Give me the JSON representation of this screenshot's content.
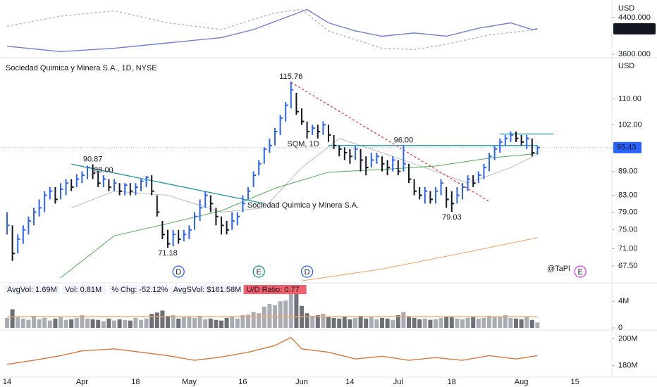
{
  "chart_data": [
    {
      "type": "line",
      "y_label": "USD",
      "ylim": [
        3556,
        4720
      ],
      "yticks": [
        {
          "value": 4400,
          "label": "4400.000"
        },
        {
          "value": 3600,
          "label": "3600.000"
        }
      ],
      "show_last": true,
      "series": [
        {
          "color": "#6f7fd8",
          "x": [
            0,
            10,
            20,
            30,
            40,
            46,
            52,
            56,
            60,
            65,
            70,
            76,
            82,
            88,
            94,
            98,
            99
          ],
          "values": [
            3775,
            3658,
            3731,
            3847,
            3964,
            4138,
            4400,
            4575,
            4284,
            4109,
            3993,
            4065,
            3993,
            4167,
            4284,
            4138,
            4153.219
          ]
        },
        {
          "color": "#b2b5be",
          "dashed": true,
          "x": [
            0,
            10,
            20,
            30,
            40,
            50,
            55,
            60,
            70,
            76,
            82,
            90,
            99
          ],
          "values": [
            4211,
            4429,
            4545,
            4284,
            4138,
            4502,
            4575,
            4109,
            3731,
            3702,
            3818,
            4022,
            4138
          ]
        }
      ]
    },
    {
      "type": "ohlc",
      "title": "Sociedad Quimica y Minera S.A., 1D, NYSE",
      "y_label": "USD",
      "watermark": [
        "SQM, 1D",
        "Sociedad Quimica y Minera S.A."
      ],
      "logo": "@TaPl",
      "log_scale": true,
      "grid": false,
      "up_color": "#2962ff",
      "down_color": "#131722",
      "ylim": [
        64.5,
        123.1
      ],
      "yticks": [
        {
          "value": 67.5,
          "label": "67.50"
        },
        {
          "value": 71,
          "label": "71.00"
        },
        {
          "value": 75,
          "label": "75.00"
        },
        {
          "value": 79,
          "label": "79.00"
        },
        {
          "value": 83,
          "label": "83.00"
        },
        {
          "value": 89,
          "label": "89.00"
        },
        {
          "value": 102,
          "label": "102.00"
        },
        {
          "value": 110,
          "label": "110.00"
        }
      ],
      "categories": [
        "14",
        null,
        null,
        null,
        null,
        null,
        null,
        null,
        null,
        null,
        null,
        null,
        null,
        null,
        "Apr",
        null,
        null,
        null,
        null,
        null,
        null,
        null,
        null,
        null,
        "18",
        null,
        null,
        null,
        null,
        null,
        null,
        null,
        null,
        null,
        "May",
        null,
        null,
        null,
        null,
        null,
        null,
        null,
        null,
        null,
        "16",
        null,
        null,
        null,
        null,
        null,
        null,
        null,
        null,
        null,
        null,
        "Jun",
        null,
        null,
        null,
        null,
        null,
        null,
        null,
        null,
        "14",
        null,
        null,
        null,
        null,
        null,
        null,
        null,
        null,
        "Jul",
        null,
        null,
        null,
        null,
        null,
        null,
        null,
        null,
        null,
        "18",
        null,
        null,
        null,
        null,
        null,
        null,
        null,
        null,
        null,
        null,
        null,
        null,
        "Aug",
        null,
        null,
        null,
        null,
        null,
        null,
        null,
        null,
        null,
        "15",
        null
      ],
      "high": [
        79,
        76,
        74,
        76,
        78,
        80,
        82,
        84,
        85,
        85,
        86,
        87,
        87,
        88.3,
        89,
        90.5,
        90.87,
        89,
        88,
        87,
        87,
        86,
        86,
        86,
        86,
        87,
        87.8,
        88,
        83,
        77,
        75,
        75,
        75,
        75,
        76,
        79,
        82,
        84,
        83,
        80,
        78,
        77,
        79,
        79,
        83,
        85,
        89,
        92,
        95.5,
        98,
        101,
        105,
        109,
        115.76,
        112,
        107,
        103,
        102,
        102,
        103,
        102,
        99,
        95.9,
        95.5,
        95,
        95.8,
        95,
        93,
        94,
        94,
        93,
        92,
        93,
        92,
        96,
        91,
        87,
        85,
        85,
        84,
        85,
        87,
        85,
        84,
        85,
        86,
        88,
        88,
        89,
        91,
        94,
        96,
        98,
        99,
        100,
        100,
        99,
        99,
        98,
        96,
        null,
        null,
        null,
        null,
        null,
        null,
        null,
        null
      ],
      "low": [
        74,
        68.5,
        70,
        72,
        74,
        76,
        78,
        79,
        82,
        81,
        82,
        83,
        84,
        85,
        86,
        87,
        87,
        85,
        85,
        84,
        84,
        83,
        83,
        83,
        83,
        84,
        85,
        83,
        78,
        73,
        71.18,
        71.5,
        72,
        72.5,
        73,
        75,
        77,
        80,
        79,
        76,
        74,
        74,
        75,
        76,
        79,
        82,
        85,
        88,
        91,
        94,
        96,
        99,
        103,
        107,
        105,
        102,
        98,
        99,
        98,
        99,
        97,
        95,
        93,
        92,
        91,
        92,
        89,
        88,
        90,
        91,
        89,
        88,
        89,
        88,
        89,
        86,
        83,
        82,
        81,
        81,
        81,
        83,
        80,
        79.03,
        81,
        82,
        84,
        85,
        86,
        87,
        89,
        92,
        94,
        96,
        97,
        97,
        96,
        95,
        93,
        93.5,
        null,
        null,
        null,
        null,
        null,
        null,
        null,
        null
      ],
      "close": [
        76,
        70,
        73,
        75,
        77,
        79,
        80,
        83,
        84,
        82,
        84.5,
        86,
        85,
        87,
        88,
        90,
        88.5,
        86,
        87,
        85,
        86,
        84,
        85.5,
        84,
        85,
        86.5,
        87.5,
        84,
        79,
        74,
        72,
        74,
        73,
        74,
        75,
        78,
        80,
        83,
        81,
        78,
        76,
        75,
        77,
        78,
        81,
        84,
        88,
        91,
        95,
        96,
        100,
        104,
        108,
        113,
        106,
        103,
        100,
        101,
        100,
        102,
        99,
        96,
        95,
        94,
        93,
        95,
        92,
        90,
        92,
        93,
        91,
        90,
        92,
        89,
        91,
        87,
        84,
        83,
        84,
        82,
        84,
        86,
        82,
        81,
        83,
        85,
        87,
        86,
        88,
        90,
        93,
        95,
        97,
        98,
        99,
        98,
        97,
        98,
        94,
        95.43,
        null,
        null,
        null,
        null,
        null,
        null,
        null,
        null
      ],
      "annotations": [
        {
          "value": 115.76,
          "label": "115.76"
        },
        {
          "value": 90.87,
          "label": "90.87"
        },
        {
          "value": 88,
          "label": "88.00"
        },
        {
          "value": 71.18,
          "label": "71.18"
        },
        {
          "value": 96,
          "label": "96.00"
        },
        {
          "value": 79.03,
          "label": "79.03"
        }
      ],
      "overlays": [
        {
          "color": "#b9bcc4",
          "x": [
            12,
            20,
            30,
            40,
            48,
            55,
            62,
            70,
            78,
            86,
            94,
            99
          ],
          "values": [
            80,
            84,
            83,
            79,
            80,
            90,
            98,
            94,
            90,
            86,
            90,
            93.5
          ]
        },
        {
          "color": "#4caf50",
          "x": [
            10,
            20,
            30,
            40,
            50,
            60,
            70,
            80,
            90,
            99
          ],
          "values": [
            65.2,
            73.7,
            76.4,
            79.3,
            84.7,
            88.8,
            89.5,
            90.4,
            92.5,
            93.8
          ]
        },
        {
          "color": "#f5a25d",
          "x": [
            55,
            70,
            85,
            99
          ],
          "values": [
            64.6,
            66.9,
            70.1,
            73.3
          ]
        }
      ],
      "trendlines": [
        {
          "color": "#2196a6",
          "x": [
            12,
            48
          ],
          "values": [
            90.9,
            81
          ]
        },
        {
          "color": "#2196a6",
          "x": [
            60,
            99
          ],
          "values": [
            96,
            96
          ]
        },
        {
          "color": "#2196a6",
          "x": [
            92,
            102
          ],
          "values": [
            99.3,
            99.3
          ]
        },
        {
          "color": "#e53935",
          "dashed": true,
          "x": [
            53,
            90
          ],
          "values": [
            115.5,
            81.5
          ]
        }
      ],
      "events": [
        {
          "label": "D",
          "x": 32,
          "color": "#2962ff"
        },
        {
          "label": "E",
          "x": 47,
          "color": "#089981"
        },
        {
          "label": "D",
          "x": 56,
          "color": "#2962ff"
        },
        {
          "label": "E",
          "x": 107,
          "color": "#e040fb"
        }
      ]
    },
    {
      "type": "bar",
      "up_color": "#a9acb5",
      "down_color": "#6d7079",
      "ylim": [
        0,
        6.55
      ],
      "yticks": [
        0,
        {
          "value": 4,
          "label": "4M"
        }
      ],
      "avg_volume": 1.69,
      "avg_color": "#f5a25d",
      "stats": [
        {
          "label": "AvgVol: 1.69M"
        },
        {
          "label": "Vol: 0.81M"
        },
        {
          "label": "% Chg: -52.12%"
        },
        {
          "label": "AvgSVol: $161.58M"
        },
        {
          "label": "U/D Ratio: 0.77",
          "color": "#f05f6d"
        }
      ],
      "values": [
        1.5,
        2.8,
        1.6,
        1.4,
        1.2,
        1.8,
        1.3,
        1.5,
        1.1,
        1.4,
        1.6,
        1.2,
        1.3,
        1.5,
        1.9,
        1.4,
        1.3,
        1.2,
        1.0,
        1.4,
        1.1,
        1.3,
        1.2,
        1.1,
        1.5,
        1.2,
        1.4,
        2.1,
        2.3,
        2.6,
        1.8,
        1.9,
        1.4,
        1.6,
        1.7,
        1.5,
        1.8,
        1.3,
        1.4,
        1.2,
        1.1,
        1.5,
        1.7,
        1.4,
        1.9,
        2.0,
        2.4,
        2.2,
        3.2,
        3.6,
        3.4,
        4.0,
        4.1,
        6.3,
        5.4,
        3.3,
        2.2,
        1.8,
        1.9,
        2.1,
        1.6,
        1.5,
        1.4,
        1.7,
        1.3,
        1.5,
        1.8,
        1.4,
        1.6,
        1.3,
        1.5,
        1.4,
        1.2,
        1.9,
        2.4,
        1.7,
        1.5,
        1.3,
        1.4,
        1.2,
        1.3,
        1.5,
        1.7,
        1.6,
        1.4,
        1.3,
        1.5,
        1.6,
        1.4,
        1.5,
        1.8,
        1.6,
        1.7,
        1.9,
        1.5,
        1.4,
        1.3,
        1.6,
        1.2,
        0.81
      ]
    },
    {
      "type": "line",
      "ylim": [
        172.5,
        205
      ],
      "yticks": [
        {
          "value": 200,
          "label": "200M"
        },
        {
          "value": 180,
          "label": "180M"
        }
      ],
      "series": [
        {
          "color": "#d9773a",
          "x": [
            0,
            5,
            10,
            14,
            20,
            25,
            30,
            35,
            40,
            45,
            50,
            53,
            55,
            60,
            65,
            70,
            75,
            80,
            85,
            90,
            95,
            99
          ],
          "values": [
            181,
            184,
            187.5,
            191,
            192.5,
            190,
            187.5,
            184,
            186.5,
            190,
            195,
            201,
            192.5,
            190,
            185,
            187,
            184,
            186,
            184,
            187.5,
            185,
            187.5
          ]
        }
      ]
    }
  ]
}
